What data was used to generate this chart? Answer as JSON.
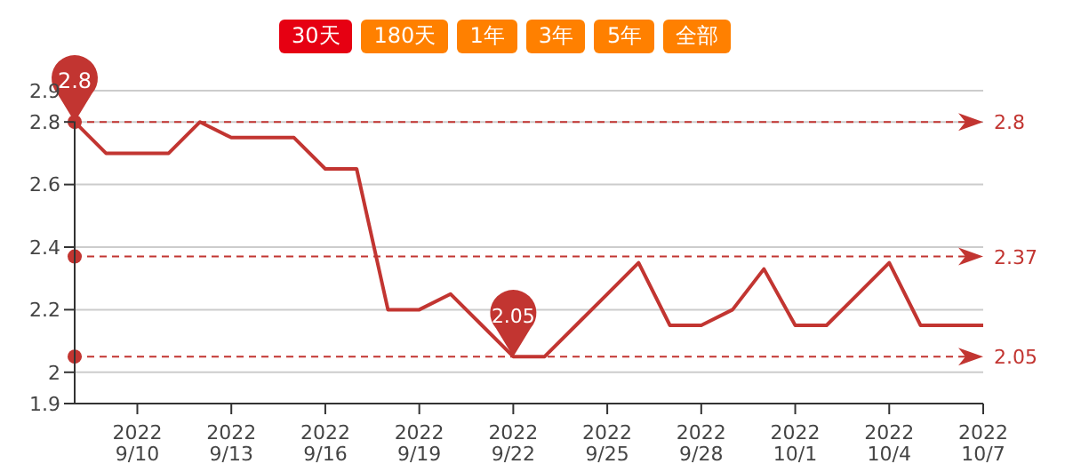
{
  "chart_data": {
    "type": "line",
    "x": [
      "2022-09-08",
      "2022-09-09",
      "2022-09-10",
      "2022-09-11",
      "2022-09-12",
      "2022-09-13",
      "2022-09-14",
      "2022-09-15",
      "2022-09-16",
      "2022-09-17",
      "2022-09-18",
      "2022-09-19",
      "2022-09-20",
      "2022-09-21",
      "2022-09-22",
      "2022-09-23",
      "2022-09-24",
      "2022-09-25",
      "2022-09-26",
      "2022-09-27",
      "2022-09-28",
      "2022-09-29",
      "2022-09-30",
      "2022-10-01",
      "2022-10-02",
      "2022-10-03",
      "2022-10-04",
      "2022-10-05",
      "2022-10-06",
      "2022-10-07"
    ],
    "series": [
      {
        "color": "#c23531",
        "values": [
          2.8,
          2.7,
          2.7,
          2.7,
          2.8,
          2.75,
          2.75,
          2.75,
          2.65,
          2.65,
          2.2,
          2.2,
          2.25,
          2.15,
          2.05,
          2.05,
          2.15,
          2.25,
          2.35,
          2.15,
          2.15,
          2.2,
          2.33,
          2.15,
          2.15,
          2.25,
          2.35,
          2.15,
          2.15,
          2.15
        ]
      }
    ],
    "xlim": [
      "2022-09-08",
      "2022-10-07"
    ],
    "xticks": [
      {
        "value": "2022-09-10",
        "label": "2022\n9/10"
      },
      {
        "value": "2022-09-13",
        "label": "2022\n9/13"
      },
      {
        "value": "2022-09-16",
        "label": "2022\n9/16"
      },
      {
        "value": "2022-09-19",
        "label": "2022\n9/19"
      },
      {
        "value": "2022-09-22",
        "label": "2022\n9/22"
      },
      {
        "value": "2022-09-25",
        "label": "2022\n9/25"
      },
      {
        "value": "2022-09-28",
        "label": "2022\n9/28"
      },
      {
        "value": "2022-10-01",
        "label": "2022\n10/1"
      },
      {
        "value": "2022-10-04",
        "label": "2022\n10/4"
      },
      {
        "value": "2022-10-07",
        "label": "2022\n10/7"
      }
    ],
    "ylim": [
      1.9,
      2.9
    ],
    "yticks": [
      1.9,
      2,
      2.2,
      2.4,
      2.6,
      2.8,
      2.9
    ],
    "grid": "y",
    "marker": "none",
    "line_style": "solid",
    "legend": false,
    "ref_lines": [
      {
        "axis": "y",
        "value": 2.8,
        "label": "2.8",
        "color": "#c23531",
        "line_style": "dashed"
      },
      {
        "axis": "y",
        "value": 2.37,
        "label": "2.37",
        "color": "#c23531",
        "line_style": "dashed"
      },
      {
        "axis": "y",
        "value": 2.05,
        "label": "2.05",
        "color": "#c23531",
        "line_style": "dashed"
      }
    ],
    "annotations": [
      "30天",
      "180天",
      "1年",
      "3年",
      "5年",
      "全部",
      {
        "text": "2.8",
        "x": "2022-09-08",
        "y": 2.8
      },
      {
        "text": "2.05",
        "x": "2022-09-22",
        "y": 2.05
      }
    ]
  }
}
